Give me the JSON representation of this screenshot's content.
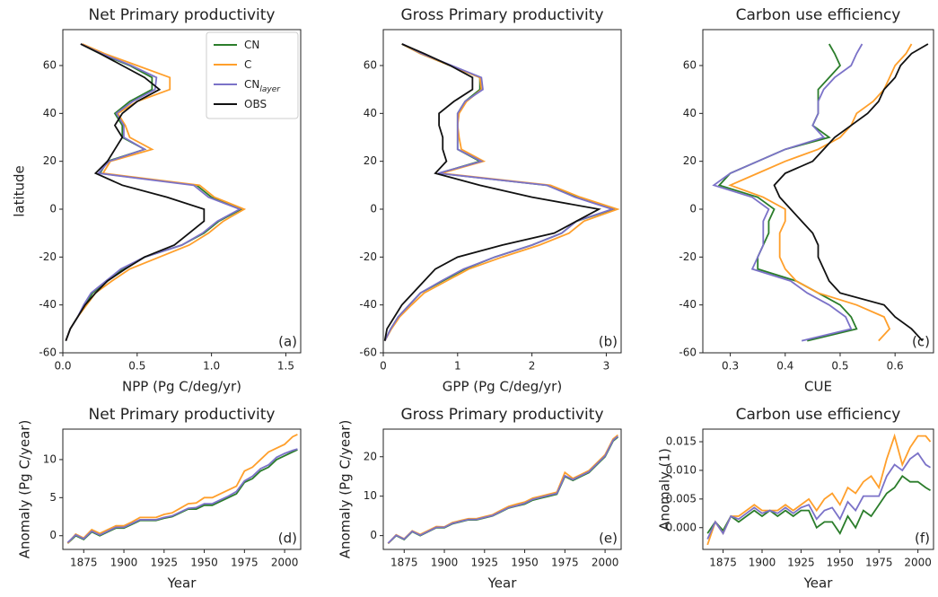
{
  "chart_data": [
    {
      "type": "profile",
      "title": "Net Primary productivity",
      "xlabel": "NPP (Pg C/deg/yr)",
      "ylabel": "latitude",
      "panel_label": "(a)",
      "y": [
        -55,
        -50,
        -45,
        -40,
        -35,
        -30,
        -25,
        -20,
        -15,
        -10,
        -5,
        0,
        5,
        10,
        15,
        20,
        25,
        30,
        35,
        40,
        45,
        50,
        55,
        60,
        65,
        69
      ],
      "xlim": [
        0,
        1.6
      ],
      "xticks": [
        {
          "value": 0,
          "label": "0.0"
        },
        0.5,
        {
          "value": 1,
          "label": "1.0"
        },
        1.5
      ],
      "ylim": [
        -60,
        75
      ],
      "yticks": [
        -60,
        -40,
        -20,
        0,
        20,
        40,
        60
      ],
      "legend": "upper right",
      "series": [
        {
          "name": "CN",
          "color": "#2b7d2b",
          "values": [
            0.02,
            0.05,
            0.1,
            0.15,
            0.2,
            0.3,
            0.4,
            0.55,
            0.8,
            0.95,
            1.05,
            1.2,
            1.0,
            0.9,
            0.25,
            0.3,
            0.55,
            0.4,
            0.4,
            0.35,
            0.45,
            0.6,
            0.6,
            0.45,
            0.25,
            0.12
          ]
        },
        {
          "name": "C",
          "color": "#ff9f2b",
          "values": [
            0.02,
            0.05,
            0.1,
            0.16,
            0.22,
            0.33,
            0.45,
            0.65,
            0.85,
            0.98,
            1.08,
            1.22,
            1.02,
            0.92,
            0.27,
            0.32,
            0.6,
            0.45,
            0.42,
            0.37,
            0.5,
            0.72,
            0.72,
            0.5,
            0.28,
            0.13
          ]
        },
        {
          "name": "CN",
          "name_sub": "layer",
          "color": "#7b72c8",
          "values": [
            0.02,
            0.05,
            0.1,
            0.14,
            0.19,
            0.29,
            0.39,
            0.55,
            0.8,
            0.94,
            1.04,
            1.19,
            0.98,
            0.88,
            0.24,
            0.31,
            0.55,
            0.41,
            0.41,
            0.36,
            0.47,
            0.62,
            0.63,
            0.46,
            0.26,
            0.12
          ]
        },
        {
          "name": "OBS",
          "color": "#111111",
          "values": [
            0.02,
            0.05,
            0.1,
            0.15,
            0.22,
            0.3,
            0.42,
            0.55,
            0.75,
            0.85,
            0.95,
            0.95,
            0.7,
            0.4,
            0.22,
            0.3,
            0.35,
            0.4,
            0.35,
            0.4,
            0.5,
            0.65,
            0.55,
            0.4,
            0.25,
            0.12
          ]
        }
      ]
    },
    {
      "type": "profile",
      "title": "Gross Primary productivity",
      "xlabel": "GPP (Pg C/deg/yr)",
      "panel_label": "(b)",
      "y": [
        -55,
        -50,
        -45,
        -40,
        -35,
        -30,
        -25,
        -20,
        -15,
        -10,
        -5,
        0,
        5,
        10,
        15,
        20,
        25,
        30,
        35,
        40,
        45,
        50,
        55,
        60,
        65,
        69
      ],
      "xlim": [
        0,
        3.2
      ],
      "xticks": [
        0,
        1,
        2,
        3
      ],
      "ylim": [
        -60,
        75
      ],
      "yticks": [
        -60,
        -40,
        -20,
        0,
        20,
        40,
        60
      ],
      "series": [
        {
          "color": "#2b7d2b",
          "values": [
            0.02,
            0.1,
            0.2,
            0.35,
            0.5,
            0.8,
            1.1,
            1.5,
            2.0,
            2.4,
            2.6,
            3.1,
            2.6,
            2.2,
            0.75,
            1.3,
            1.0,
            1.0,
            1.0,
            1.0,
            1.1,
            1.3,
            1.3,
            0.9,
            0.5,
            0.25
          ]
        },
        {
          "color": "#ff9f2b",
          "values": [
            0.02,
            0.11,
            0.22,
            0.38,
            0.55,
            0.85,
            1.15,
            1.6,
            2.1,
            2.5,
            2.7,
            3.15,
            2.65,
            2.25,
            0.78,
            1.35,
            1.05,
            1.02,
            1.0,
            1.02,
            1.12,
            1.32,
            1.3,
            0.9,
            0.5,
            0.25
          ]
        },
        {
          "color": "#7b72c8",
          "values": [
            0.02,
            0.1,
            0.2,
            0.35,
            0.5,
            0.78,
            1.08,
            1.5,
            2.0,
            2.4,
            2.6,
            3.08,
            2.58,
            2.2,
            0.74,
            1.32,
            1.0,
            1.0,
            1.0,
            1.0,
            1.1,
            1.34,
            1.32,
            0.92,
            0.52,
            0.26
          ]
        },
        {
          "color": "#111111",
          "values": [
            0.02,
            0.05,
            0.15,
            0.25,
            0.4,
            0.55,
            0.7,
            1.0,
            1.6,
            2.3,
            2.6,
            2.9,
            2.0,
            1.3,
            0.7,
            0.85,
            0.8,
            0.8,
            0.75,
            0.75,
            0.95,
            1.2,
            1.2,
            0.9,
            0.55,
            0.25
          ]
        }
      ]
    },
    {
      "type": "profile",
      "title": "Carbon use efficiency",
      "xlabel": "CUE",
      "panel_label": "(c)",
      "y": [
        -55,
        -50,
        -45,
        -40,
        -35,
        -30,
        -25,
        -20,
        -15,
        -10,
        -5,
        0,
        5,
        10,
        15,
        20,
        25,
        30,
        35,
        40,
        45,
        50,
        55,
        60,
        65,
        69
      ],
      "xlim": [
        0.25,
        0.67
      ],
      "xticks": [
        0.3,
        0.4,
        0.5,
        0.6
      ],
      "ylim": [
        -60,
        75
      ],
      "yticks": [
        -60,
        -40,
        -20,
        0,
        20,
        40,
        60
      ],
      "series": [
        {
          "color": "#2b7d2b",
          "values": [
            0.44,
            0.53,
            0.52,
            0.5,
            0.46,
            0.42,
            0.35,
            0.35,
            0.36,
            0.37,
            0.37,
            0.38,
            0.35,
            0.28,
            0.3,
            0.35,
            0.4,
            0.48,
            0.45,
            0.46,
            0.46,
            0.46,
            0.48,
            0.5,
            0.49,
            0.48
          ]
        },
        {
          "color": "#ff9f2b",
          "values": [
            0.57,
            0.59,
            0.58,
            0.53,
            0.46,
            0.42,
            0.4,
            0.39,
            0.39,
            0.39,
            0.4,
            0.4,
            0.36,
            0.3,
            0.35,
            0.4,
            0.46,
            0.5,
            0.52,
            0.53,
            0.56,
            0.58,
            0.59,
            0.6,
            0.62,
            0.63
          ]
        },
        {
          "color": "#7b72c8",
          "values": [
            0.43,
            0.52,
            0.51,
            0.48,
            0.44,
            0.41,
            0.34,
            0.35,
            0.36,
            0.36,
            0.36,
            0.37,
            0.34,
            0.27,
            0.3,
            0.35,
            0.4,
            0.47,
            0.45,
            0.46,
            0.46,
            0.47,
            0.49,
            0.52,
            0.53,
            0.54
          ]
        },
        {
          "color": "#111111",
          "values": [
            0.65,
            0.63,
            0.6,
            0.58,
            0.5,
            0.48,
            0.47,
            0.46,
            0.46,
            0.45,
            0.43,
            0.41,
            0.39,
            0.38,
            0.4,
            0.45,
            0.47,
            0.49,
            0.52,
            0.55,
            0.57,
            0.58,
            0.6,
            0.61,
            0.63,
            0.66
          ]
        }
      ]
    },
    {
      "type": "line",
      "title": "Net Primary productivity",
      "xlabel": "Year",
      "ylabel": "Anomaly (Pg C/year)",
      "panel_label": "(d)",
      "x": [
        1865,
        1870,
        1875,
        1880,
        1885,
        1890,
        1895,
        1900,
        1905,
        1910,
        1915,
        1920,
        1925,
        1930,
        1935,
        1940,
        1945,
        1950,
        1955,
        1960,
        1965,
        1970,
        1975,
        1980,
        1985,
        1990,
        1995,
        2000,
        2005,
        2008
      ],
      "xlim": [
        1862,
        2010
      ],
      "xticks": [
        1875,
        1900,
        1925,
        1950,
        1975,
        2000
      ],
      "ylim": [
        -1.8,
        14
      ],
      "yticks": [
        0,
        5,
        10
      ],
      "series": [
        {
          "color": "#2b7d2b",
          "values": [
            -1,
            0,
            -0.5,
            0.5,
            0,
            0.5,
            1,
            1,
            1.5,
            2,
            2,
            2,
            2.3,
            2.5,
            3,
            3.5,
            3.5,
            4,
            4,
            4.5,
            5,
            5.5,
            7,
            7.5,
            8.5,
            9,
            10,
            10.5,
            11,
            11.3
          ]
        },
        {
          "color": "#ff9f2b",
          "values": [
            -1,
            0.2,
            -0.3,
            0.8,
            0.3,
            0.8,
            1.3,
            1.3,
            1.8,
            2.4,
            2.4,
            2.4,
            2.8,
            3,
            3.6,
            4.2,
            4.3,
            5,
            5,
            5.5,
            6,
            6.5,
            8.5,
            9,
            10,
            11,
            11.5,
            12,
            13,
            13.3
          ]
        },
        {
          "color": "#7b72c8",
          "values": [
            -0.9,
            0.1,
            -0.4,
            0.6,
            0.1,
            0.6,
            1.1,
            1.1,
            1.6,
            2.1,
            2.1,
            2.1,
            2.4,
            2.6,
            3.1,
            3.6,
            3.7,
            4.2,
            4.2,
            4.7,
            5.2,
            5.8,
            7.2,
            7.8,
            8.8,
            9.3,
            10.3,
            10.8,
            11.2,
            11.4
          ]
        }
      ]
    },
    {
      "type": "line",
      "title": "Gross Primary productivity",
      "xlabel": "Year",
      "ylabel": "Anomaly (Pg C/year)",
      "panel_label": "(e)",
      "x": [
        1865,
        1870,
        1875,
        1880,
        1885,
        1890,
        1895,
        1900,
        1905,
        1910,
        1915,
        1920,
        1925,
        1930,
        1935,
        1940,
        1945,
        1950,
        1955,
        1960,
        1965,
        1970,
        1975,
        1980,
        1985,
        1990,
        1995,
        2000,
        2005,
        2008
      ],
      "xlim": [
        1862,
        2010
      ],
      "xticks": [
        1875,
        1900,
        1925,
        1950,
        1975,
        2000
      ],
      "ylim": [
        -3.5,
        27
      ],
      "yticks": [
        0,
        10,
        20
      ],
      "series": [
        {
          "color": "#2b7d2b",
          "values": [
            -2,
            0,
            -1,
            1,
            0,
            1,
            2,
            2,
            3,
            3.5,
            4,
            4,
            4.5,
            5,
            6,
            7,
            7.5,
            8,
            9,
            9.5,
            10,
            10.5,
            15,
            14,
            15,
            16,
            18,
            20,
            24,
            25
          ]
        },
        {
          "color": "#ff9f2b",
          "values": [
            -2,
            0.2,
            -0.8,
            1.2,
            0.3,
            1.3,
            2.3,
            2.2,
            3.3,
            3.8,
            4.3,
            4.3,
            4.8,
            5.3,
            6.4,
            7.4,
            8,
            8.5,
            9.5,
            10,
            10.5,
            11,
            16,
            14.5,
            15.5,
            16.5,
            18.5,
            20.5,
            24.5,
            25.5
          ]
        },
        {
          "color": "#7b72c8",
          "values": [
            -1.9,
            0.1,
            -0.9,
            1.1,
            0.1,
            1.1,
            2.1,
            2.1,
            3.1,
            3.6,
            4.1,
            4.1,
            4.6,
            5.1,
            6.1,
            7.1,
            7.6,
            8.2,
            9.2,
            9.7,
            10.2,
            10.7,
            15.2,
            14.2,
            15.2,
            16.2,
            18.2,
            20.2,
            24.2,
            25.2
          ]
        }
      ]
    },
    {
      "type": "line",
      "title": "Carbon use efficiency",
      "xlabel": "Year",
      "ylabel": "Anomaly (1)",
      "panel_label": "(f)",
      "x": [
        1865,
        1870,
        1875,
        1880,
        1885,
        1890,
        1895,
        1900,
        1905,
        1910,
        1915,
        1920,
        1925,
        1930,
        1935,
        1940,
        1945,
        1950,
        1955,
        1960,
        1965,
        1970,
        1975,
        1980,
        1985,
        1990,
        1995,
        2000,
        2005,
        2008
      ],
      "xlim": [
        1862,
        2010
      ],
      "xticks": [
        1875,
        1900,
        1925,
        1950,
        1975,
        2000
      ],
      "ylim": [
        -0.0038,
        0.0172
      ],
      "yticks": [
        {
          "value": 0,
          "label": "0.000"
        },
        0.005,
        {
          "value": 0.01,
          "label": "0.010"
        },
        0.015
      ],
      "series": [
        {
          "color": "#2b7d2b",
          "values": [
            -0.001,
            0.001,
            -0.0005,
            0.002,
            0.001,
            0.002,
            0.003,
            0.002,
            0.003,
            0.002,
            0.003,
            0.002,
            0.003,
            0.003,
            0,
            0.001,
            0.001,
            -0.001,
            0.002,
            0,
            0.003,
            0.002,
            0.004,
            0.006,
            0.007,
            0.009,
            0.008,
            0.008,
            0.007,
            0.0065
          ]
        },
        {
          "color": "#ff9f2b",
          "values": [
            -0.003,
            0.001,
            -0.001,
            0.002,
            0.002,
            0.003,
            0.004,
            0.003,
            0.003,
            0.003,
            0.004,
            0.003,
            0.004,
            0.005,
            0.003,
            0.005,
            0.006,
            0.004,
            0.007,
            0.006,
            0.008,
            0.009,
            0.007,
            0.012,
            0.016,
            0.011,
            0.014,
            0.016,
            0.016,
            0.015
          ]
        },
        {
          "color": "#7b72c8",
          "values": [
            -0.002,
            0.001,
            -0.001,
            0.002,
            0.0015,
            0.0025,
            0.0035,
            0.0025,
            0.003,
            0.0025,
            0.0035,
            0.0025,
            0.0035,
            0.004,
            0.0015,
            0.003,
            0.0035,
            0.0015,
            0.0045,
            0.003,
            0.0055,
            0.0055,
            0.0055,
            0.009,
            0.011,
            0.01,
            0.012,
            0.013,
            0.011,
            0.0105
          ]
        }
      ]
    }
  ]
}
